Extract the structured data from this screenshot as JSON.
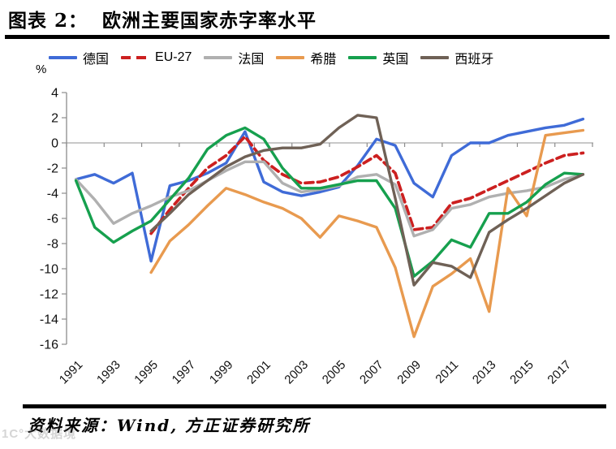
{
  "header": {
    "title": "图表 2：  欧洲主要国家赤字率水平"
  },
  "footer": {
    "source": "资料来源：Wind, 方正证券研究所",
    "watermark": "1C°大数据境"
  },
  "chart_data": {
    "type": "line",
    "title": "欧洲主要国家赤字率水平",
    "ylabel_unit": "%",
    "ylim": [
      -16,
      4
    ],
    "y_ticks": [
      4,
      2,
      0,
      -2,
      -4,
      -6,
      -8,
      -10,
      -12,
      -14,
      -16
    ],
    "grid": "zero-line-only",
    "legend_position": "top",
    "x": [
      1991,
      1992,
      1993,
      1994,
      1995,
      1996,
      1997,
      1998,
      1999,
      2000,
      2001,
      2002,
      2003,
      2004,
      2005,
      2006,
      2007,
      2008,
      2009,
      2010,
      2011,
      2012,
      2013,
      2014,
      2015,
      2016,
      2017,
      2018
    ],
    "x_tick_labels": [
      "1991",
      "1993",
      "1995",
      "1997",
      "1999",
      "2001",
      "2003",
      "2005",
      "2007",
      "2009",
      "2011",
      "2013",
      "2015",
      "2017"
    ],
    "axis_color": "#8c8c8c",
    "zero_line_color": "#a8a8a8",
    "series": [
      {
        "name": "德国",
        "color": "#3f6bd7",
        "style": "solid",
        "values": [
          -2.9,
          -2.5,
          -3.2,
          -2.4,
          -9.4,
          -3.4,
          -3.0,
          -2.4,
          -1.6,
          0.9,
          -3.1,
          -3.9,
          -4.2,
          -3.9,
          -3.5,
          -1.8,
          0.3,
          -0.2,
          -3.2,
          -4.3,
          -1.0,
          0.0,
          0.0,
          0.6,
          0.9,
          1.2,
          1.4,
          1.9
        ]
      },
      {
        "name": "EU-27",
        "color": "#cc2020",
        "style": "dashed",
        "values": [
          null,
          null,
          null,
          null,
          -7.2,
          -5.3,
          -3.6,
          -2.0,
          -1.0,
          0.5,
          -1.4,
          -2.5,
          -3.2,
          -3.1,
          -2.7,
          -1.9,
          -1.0,
          -2.4,
          -6.9,
          -6.7,
          -4.8,
          -4.4,
          -3.7,
          -3.0,
          -2.3,
          -1.6,
          -1.0,
          -0.8
        ]
      },
      {
        "name": "法国",
        "color": "#b0b0b0",
        "style": "solid",
        "values": [
          -2.9,
          -4.5,
          -6.4,
          -5.6,
          -5.0,
          -4.3,
          -3.8,
          -3.0,
          -2.2,
          -1.5,
          -1.5,
          -3.2,
          -3.9,
          -3.7,
          -3.4,
          -2.7,
          -2.5,
          -3.3,
          -7.4,
          -6.9,
          -5.2,
          -4.9,
          -4.3,
          -4.0,
          -3.8,
          -3.5,
          -2.9,
          -2.5
        ]
      },
      {
        "name": "希腊",
        "color": "#e89a4f",
        "style": "solid",
        "values": [
          null,
          null,
          null,
          null,
          -10.3,
          -7.8,
          -6.5,
          -5.0,
          -3.6,
          -4.1,
          -4.7,
          -5.2,
          -6.0,
          -7.5,
          -5.8,
          -6.2,
          -6.7,
          -9.9,
          -15.4,
          -11.4,
          -10.4,
          -9.2,
          -13.4,
          -3.6,
          -5.8,
          0.6,
          0.8,
          1.0
        ]
      },
      {
        "name": "英国",
        "color": "#16a04e",
        "style": "solid",
        "values": [
          -3.0,
          -6.7,
          -7.9,
          -7.0,
          -6.2,
          -4.5,
          -2.8,
          -0.5,
          0.6,
          1.2,
          0.3,
          -2.0,
          -3.6,
          -3.6,
          -3.3,
          -3.0,
          -3.0,
          -5.2,
          -10.6,
          -9.4,
          -7.7,
          -8.3,
          -5.6,
          -5.6,
          -4.7,
          -3.3,
          -2.4,
          -2.5
        ]
      },
      {
        "name": "西班牙",
        "color": "#6f6156",
        "style": "solid",
        "values": [
          null,
          null,
          null,
          null,
          -7.0,
          -5.6,
          -4.1,
          -3.0,
          -1.9,
          -1.1,
          -0.6,
          -0.4,
          -0.4,
          -0.1,
          1.2,
          2.2,
          2.0,
          -4.4,
          -11.3,
          -9.5,
          -9.8,
          -10.7,
          -7.1,
          -6.1,
          -5.2,
          -4.2,
          -3.2,
          -2.5
        ]
      }
    ]
  }
}
